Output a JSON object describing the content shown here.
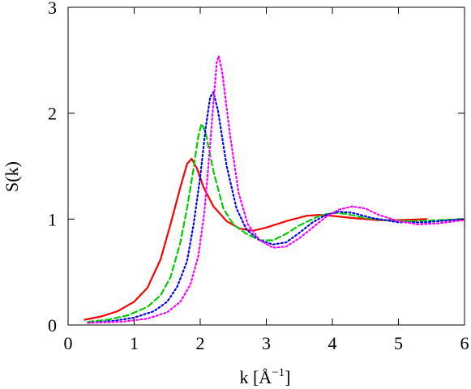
{
  "chart_data": {
    "type": "line",
    "title": "",
    "xlabel": "k [Å",
    "xlabel_sup": "−1",
    "xlabel_close": "]",
    "ylabel": "S(k)",
    "xlim": [
      0,
      6
    ],
    "ylim": [
      0,
      3
    ],
    "x_ticks": [
      0,
      1,
      2,
      3,
      4,
      5,
      6
    ],
    "y_ticks": [
      0,
      1,
      2,
      3
    ],
    "grid": false,
    "legend": "none",
    "series": [
      {
        "color": "#ff0000",
        "dash": "solid",
        "points": [
          [
            0.25,
            0.05
          ],
          [
            0.5,
            0.08
          ],
          [
            0.75,
            0.13
          ],
          [
            1.0,
            0.22
          ],
          [
            1.2,
            0.35
          ],
          [
            1.4,
            0.62
          ],
          [
            1.55,
            0.95
          ],
          [
            1.7,
            1.3
          ],
          [
            1.8,
            1.52
          ],
          [
            1.87,
            1.57
          ],
          [
            1.95,
            1.48
          ],
          [
            2.05,
            1.3
          ],
          [
            2.2,
            1.12
          ],
          [
            2.4,
            0.98
          ],
          [
            2.6,
            0.91
          ],
          [
            2.8,
            0.89
          ],
          [
            3.0,
            0.92
          ],
          [
            3.3,
            0.98
          ],
          [
            3.6,
            1.03
          ],
          [
            3.8,
            1.04
          ],
          [
            4.0,
            1.03
          ],
          [
            4.3,
            1.01
          ],
          [
            4.7,
            0.99
          ],
          [
            5.0,
            0.99
          ],
          [
            5.43,
            1.0
          ]
        ]
      },
      {
        "color": "#00cc00",
        "dash": "dashed",
        "points": [
          [
            0.3,
            0.03
          ],
          [
            0.6,
            0.05
          ],
          [
            0.9,
            0.09
          ],
          [
            1.2,
            0.17
          ],
          [
            1.4,
            0.28
          ],
          [
            1.55,
            0.45
          ],
          [
            1.7,
            0.78
          ],
          [
            1.8,
            1.1
          ],
          [
            1.9,
            1.48
          ],
          [
            1.97,
            1.78
          ],
          [
            2.02,
            1.9
          ],
          [
            2.08,
            1.82
          ],
          [
            2.2,
            1.45
          ],
          [
            2.35,
            1.1
          ],
          [
            2.5,
            0.95
          ],
          [
            2.7,
            0.86
          ],
          [
            2.9,
            0.8
          ],
          [
            3.1,
            0.8
          ],
          [
            3.3,
            0.86
          ],
          [
            3.5,
            0.94
          ],
          [
            3.8,
            1.03
          ],
          [
            4.0,
            1.06
          ],
          [
            4.2,
            1.05
          ],
          [
            4.5,
            1.01
          ],
          [
            4.8,
            0.99
          ],
          [
            5.2,
            0.98
          ],
          [
            5.6,
            0.99
          ],
          [
            6.0,
            1.0
          ]
        ]
      },
      {
        "color": "#0000ff",
        "dash": "dotted",
        "points": [
          [
            0.3,
            0.02
          ],
          [
            0.7,
            0.04
          ],
          [
            1.0,
            0.07
          ],
          [
            1.3,
            0.13
          ],
          [
            1.5,
            0.22
          ],
          [
            1.65,
            0.36
          ],
          [
            1.8,
            0.6
          ],
          [
            1.9,
            0.95
          ],
          [
            2.0,
            1.4
          ],
          [
            2.08,
            1.85
          ],
          [
            2.15,
            2.15
          ],
          [
            2.2,
            2.2
          ],
          [
            2.27,
            2.02
          ],
          [
            2.4,
            1.5
          ],
          [
            2.55,
            1.1
          ],
          [
            2.7,
            0.9
          ],
          [
            2.9,
            0.8
          ],
          [
            3.1,
            0.76
          ],
          [
            3.3,
            0.78
          ],
          [
            3.5,
            0.87
          ],
          [
            3.7,
            0.97
          ],
          [
            3.9,
            1.04
          ],
          [
            4.1,
            1.07
          ],
          [
            4.3,
            1.06
          ],
          [
            4.6,
            1.01
          ],
          [
            5.0,
            0.97
          ],
          [
            5.4,
            0.97
          ],
          [
            5.8,
            0.99
          ],
          [
            6.0,
            1.0
          ]
        ]
      },
      {
        "color": "#ff00ff",
        "dash": "dotted",
        "points": [
          [
            0.3,
            0.02
          ],
          [
            0.8,
            0.03
          ],
          [
            1.2,
            0.06
          ],
          [
            1.5,
            0.12
          ],
          [
            1.7,
            0.22
          ],
          [
            1.85,
            0.38
          ],
          [
            1.97,
            0.65
          ],
          [
            2.06,
            1.05
          ],
          [
            2.13,
            1.55
          ],
          [
            2.2,
            2.1
          ],
          [
            2.25,
            2.48
          ],
          [
            2.28,
            2.54
          ],
          [
            2.33,
            2.4
          ],
          [
            2.45,
            1.8
          ],
          [
            2.58,
            1.25
          ],
          [
            2.72,
            0.95
          ],
          [
            2.9,
            0.8
          ],
          [
            3.1,
            0.73
          ],
          [
            3.3,
            0.74
          ],
          [
            3.5,
            0.82
          ],
          [
            3.7,
            0.92
          ],
          [
            3.9,
            1.02
          ],
          [
            4.1,
            1.09
          ],
          [
            4.3,
            1.12
          ],
          [
            4.5,
            1.1
          ],
          [
            4.7,
            1.04
          ],
          [
            5.0,
            0.98
          ],
          [
            5.3,
            0.95
          ],
          [
            5.6,
            0.96
          ],
          [
            6.0,
            0.99
          ]
        ]
      }
    ]
  }
}
